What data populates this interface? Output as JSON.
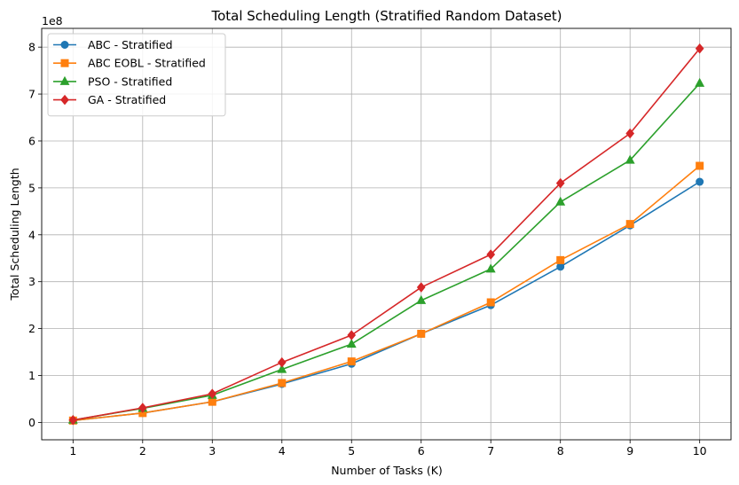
{
  "chart_data": {
    "type": "line",
    "title": "Total Scheduling Length (Stratified Random Dataset)",
    "xlabel": "Number of Tasks (K)",
    "ylabel": "Total Scheduling Length",
    "y_offset_label": "1e8",
    "x": [
      1,
      2,
      3,
      4,
      5,
      6,
      7,
      8,
      9,
      10
    ],
    "x_ticks": [
      "1",
      "2",
      "3",
      "4",
      "5",
      "6",
      "7",
      "8",
      "9",
      "10"
    ],
    "y_ticks": [
      "0",
      "1",
      "2",
      "3",
      "4",
      "5",
      "6",
      "7",
      "8"
    ],
    "xlim": [
      0.55,
      10.45
    ],
    "ylim": [
      -0.37,
      8.4
    ],
    "grid": true,
    "legend_position": "upper-left",
    "series": [
      {
        "name": "ABC - Stratified",
        "color": "#1f77b4",
        "marker": "circle",
        "values": [
          0.04,
          0.2,
          0.44,
          0.82,
          1.25,
          1.89,
          2.5,
          3.32,
          4.2,
          5.13
        ]
      },
      {
        "name": "ABC EOBL - Stratified",
        "color": "#ff7f0e",
        "marker": "square",
        "values": [
          0.04,
          0.2,
          0.44,
          0.84,
          1.3,
          1.89,
          2.56,
          3.46,
          4.23,
          5.47
        ]
      },
      {
        "name": "PSO - Stratified",
        "color": "#2ca02c",
        "marker": "triangle",
        "values": [
          0.05,
          0.3,
          0.58,
          1.13,
          1.67,
          2.6,
          3.27,
          4.7,
          5.59,
          7.23
        ]
      },
      {
        "name": "GA - Stratified",
        "color": "#d62728",
        "marker": "diamond",
        "values": [
          0.05,
          0.31,
          0.61,
          1.28,
          1.86,
          2.88,
          3.58,
          5.1,
          6.16,
          7.97
        ]
      }
    ]
  }
}
